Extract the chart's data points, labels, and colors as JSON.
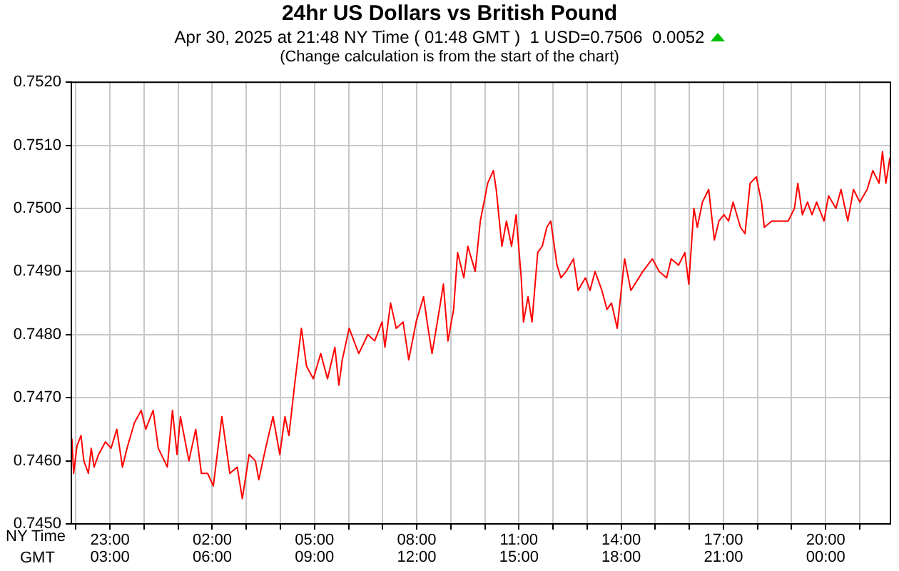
{
  "chart_data": {
    "type": "line",
    "title": "24hr US Dollars vs British Pound",
    "subtitle": "Apr 30, 2025 at 21:48 NY Time ( 01:48 GMT )  1 USD=0.7506  0.0052",
    "annotations": [
      "(Change calculation is from the start of the chart)"
    ],
    "xlabel": "NY Time",
    "x2label": "GMT",
    "x": [
      "2025-04-29T21:53",
      "2025-04-29T21:56",
      "2025-04-29T22:02",
      "2025-04-29T22:09",
      "2025-04-29T22:14",
      "2025-04-29T22:22",
      "2025-04-29T22:27",
      "2025-04-29T22:32",
      "2025-04-29T22:40",
      "2025-04-29T22:52",
      "2025-04-29T23:02",
      "2025-04-29T23:12",
      "2025-04-29T23:22",
      "2025-04-29T23:30",
      "2025-04-29T23:43",
      "2025-04-29T23:55",
      "2025-04-30T00:03",
      "2025-04-30T00:16",
      "2025-04-30T00:25",
      "2025-04-30T00:41",
      "2025-04-30T00:50",
      "2025-04-30T00:58",
      "2025-04-30T01:04",
      "2025-04-30T01:19",
      "2025-04-30T01:31",
      "2025-04-30T01:41",
      "2025-04-30T01:52",
      "2025-04-30T02:02",
      "2025-04-30T02:17",
      "2025-04-30T02:31",
      "2025-04-30T02:44",
      "2025-04-30T02:53",
      "2025-04-30T03:05",
      "2025-04-30T03:16",
      "2025-04-30T03:22",
      "2025-04-30T03:34",
      "2025-04-30T03:47",
      "2025-04-30T03:59",
      "2025-04-30T04:08",
      "2025-04-30T04:15",
      "2025-04-30T04:25",
      "2025-04-30T04:37",
      "2025-04-30T04:46",
      "2025-04-30T04:58",
      "2025-04-30T05:11",
      "2025-04-30T05:23",
      "2025-04-30T05:36",
      "2025-04-30T05:43",
      "2025-04-30T05:49",
      "2025-04-30T06:01",
      "2025-04-30T06:18",
      "2025-04-30T06:34",
      "2025-04-30T06:46",
      "2025-04-30T06:59",
      "2025-04-30T07:04",
      "2025-04-30T07:14",
      "2025-04-30T07:24",
      "2025-04-30T07:36",
      "2025-04-30T07:46",
      "2025-04-30T07:59",
      "2025-04-30T08:12",
      "2025-04-30T08:20",
      "2025-04-30T08:27",
      "2025-04-30T08:40",
      "2025-04-30T08:47",
      "2025-04-30T08:55",
      "2025-04-30T09:05",
      "2025-04-30T09:12",
      "2025-04-30T09:23",
      "2025-04-30T09:30",
      "2025-04-30T09:43",
      "2025-04-30T09:52",
      "2025-04-30T10:05",
      "2025-04-30T10:15",
      "2025-04-30T10:20",
      "2025-04-30T10:30",
      "2025-04-30T10:38",
      "2025-04-30T10:47",
      "2025-04-30T10:55",
      "2025-04-30T11:04",
      "2025-04-30T11:08",
      "2025-04-30T11:16",
      "2025-04-30T11:23",
      "2025-04-30T11:33",
      "2025-04-30T11:41",
      "2025-04-30T11:49",
      "2025-04-30T11:56",
      "2025-04-30T12:07",
      "2025-04-30T12:14",
      "2025-04-30T12:23",
      "2025-04-30T12:36",
      "2025-04-30T12:44",
      "2025-04-30T12:57",
      "2025-04-30T13:05",
      "2025-04-30T13:14",
      "2025-04-30T13:26",
      "2025-04-30T13:35",
      "2025-04-30T13:43",
      "2025-04-30T13:53",
      "2025-04-30T14:06",
      "2025-04-30T14:17",
      "2025-04-30T14:38",
      "2025-04-30T14:55",
      "2025-04-30T15:07",
      "2025-04-30T15:20",
      "2025-04-30T15:28",
      "2025-04-30T15:41",
      "2025-04-30T15:52",
      "2025-04-30T15:59",
      "2025-04-30T16:08",
      "2025-04-30T16:14",
      "2025-04-30T16:23",
      "2025-04-30T16:34",
      "2025-04-30T16:44",
      "2025-04-30T16:52",
      "2025-04-30T17:01",
      "2025-04-30T17:09",
      "2025-04-30T17:17",
      "2025-04-30T17:30",
      "2025-04-30T17:38",
      "2025-04-30T17:47",
      "2025-04-30T17:58",
      "2025-04-30T18:07",
      "2025-04-30T18:12",
      "2025-04-30T18:25",
      "2025-04-30T18:41",
      "2025-04-30T18:54",
      "2025-04-30T19:05",
      "2025-04-30T19:11",
      "2025-04-30T19:19",
      "2025-04-30T19:28",
      "2025-04-30T19:36",
      "2025-04-30T19:44",
      "2025-04-30T19:57",
      "2025-04-30T20:05",
      "2025-04-30T20:18",
      "2025-04-30T20:27",
      "2025-04-30T20:39",
      "2025-04-30T20:49",
      "2025-04-30T21:00",
      "2025-04-30T21:13",
      "2025-04-30T21:23",
      "2025-04-30T21:34",
      "2025-04-30T21:40",
      "2025-04-30T21:46",
      "2025-04-30T21:53"
    ],
    "series": [
      {
        "color": "#ff0000",
        "values": [
          0.74635,
          0.7458,
          0.74624,
          0.7464,
          0.746,
          0.7458,
          0.7462,
          0.7459,
          0.7461,
          0.7463,
          0.7462,
          0.7465,
          0.7459,
          0.7462,
          0.7466,
          0.7468,
          0.7465,
          0.7468,
          0.7462,
          0.7459,
          0.7468,
          0.7461,
          0.7467,
          0.746,
          0.7465,
          0.7458,
          0.7458,
          0.7456,
          0.7467,
          0.7458,
          0.7459,
          0.7454,
          0.7461,
          0.746,
          0.7457,
          0.7462,
          0.7467,
          0.7461,
          0.7467,
          0.7464,
          0.7472,
          0.7481,
          0.7475,
          0.7473,
          0.7477,
          0.7473,
          0.7478,
          0.7472,
          0.7476,
          0.7481,
          0.7477,
          0.748,
          0.7479,
          0.7482,
          0.7478,
          0.7485,
          0.7481,
          0.7482,
          0.7476,
          0.7482,
          0.7486,
          0.7481,
          0.7477,
          0.7484,
          0.7488,
          0.7479,
          0.7484,
          0.7493,
          0.7489,
          0.7494,
          0.749,
          0.7498,
          0.7504,
          0.7506,
          0.7503,
          0.7494,
          0.7498,
          0.7494,
          0.7499,
          0.7489,
          0.7482,
          0.7486,
          0.7482,
          0.7493,
          0.7494,
          0.7497,
          0.7498,
          0.7491,
          0.7489,
          0.749,
          0.7492,
          0.7487,
          0.7489,
          0.7487,
          0.749,
          0.7487,
          0.7484,
          0.7485,
          0.7481,
          0.7492,
          0.7487,
          0.749,
          0.7492,
          0.749,
          0.7489,
          0.7492,
          0.7491,
          0.7493,
          0.7488,
          0.75,
          0.7497,
          0.7501,
          0.7503,
          0.7495,
          0.7498,
          0.7499,
          0.7498,
          0.7501,
          0.7497,
          0.7496,
          0.7504,
          0.7505,
          0.7501,
          0.7497,
          0.7498,
          0.7498,
          0.7498,
          0.75,
          0.7504,
          0.7499,
          0.7501,
          0.7499,
          0.7501,
          0.7498,
          0.7502,
          0.75,
          0.7503,
          0.7498,
          0.7503,
          0.7501,
          0.7503,
          0.7506,
          0.7504,
          0.7509,
          0.7504,
          0.7508
        ]
      }
    ],
    "xlim": [
      "2025-04-29T21:52",
      "2025-04-30T21:54"
    ],
    "xticks": [
      {
        "value": "2025-04-29T22:00",
        "label": null
      },
      {
        "value": "2025-04-29T23:00",
        "label": "23:00"
      },
      {
        "value": "2025-04-30T00:00",
        "label": null
      },
      {
        "value": "2025-04-30T01:00",
        "label": null
      },
      {
        "value": "2025-04-30T02:00",
        "label": "02:00"
      },
      {
        "value": "2025-04-30T03:00",
        "label": null
      },
      {
        "value": "2025-04-30T04:00",
        "label": null
      },
      {
        "value": "2025-04-30T05:00",
        "label": "05:00"
      },
      {
        "value": "2025-04-30T06:00",
        "label": null
      },
      {
        "value": "2025-04-30T07:00",
        "label": null
      },
      {
        "value": "2025-04-30T08:00",
        "label": "08:00"
      },
      {
        "value": "2025-04-30T09:00",
        "label": null
      },
      {
        "value": "2025-04-30T10:00",
        "label": null
      },
      {
        "value": "2025-04-30T11:00",
        "label": "11:00"
      },
      {
        "value": "2025-04-30T12:00",
        "label": null
      },
      {
        "value": "2025-04-30T13:00",
        "label": null
      },
      {
        "value": "2025-04-30T14:00",
        "label": "14:00"
      },
      {
        "value": "2025-04-30T15:00",
        "label": null
      },
      {
        "value": "2025-04-30T16:00",
        "label": null
      },
      {
        "value": "2025-04-30T17:00",
        "label": "17:00"
      },
      {
        "value": "2025-04-30T18:00",
        "label": null
      },
      {
        "value": "2025-04-30T19:00",
        "label": null
      },
      {
        "value": "2025-04-30T20:00",
        "label": "20:00"
      },
      {
        "value": "2025-04-30T21:00",
        "label": null
      }
    ],
    "x2lim": [
      "2025-04-30T01:52",
      "2025-05-01T01:54"
    ],
    "x2ticks": [
      {
        "value": "2025-04-30T03:00",
        "label": "03:00"
      },
      {
        "value": "2025-04-30T06:00",
        "label": "06:00"
      },
      {
        "value": "2025-04-30T09:00",
        "label": "09:00"
      },
      {
        "value": "2025-04-30T12:00",
        "label": "12:00"
      },
      {
        "value": "2025-04-30T15:00",
        "label": "15:00"
      },
      {
        "value": "2025-04-30T18:00",
        "label": "18:00"
      },
      {
        "value": "2025-04-30T21:00",
        "label": "21:00"
      },
      {
        "value": "2025-05-01T00:00",
        "label": "00:00"
      }
    ],
    "ylim": [
      0.745,
      0.752
    ],
    "yticks": [
      {
        "value": 0.745,
        "label": "0.7450"
      },
      {
        "value": 0.746,
        "label": "0.7460"
      },
      {
        "value": 0.747,
        "label": "0.7470"
      },
      {
        "value": 0.748,
        "label": "0.7480"
      },
      {
        "value": 0.749,
        "label": "0.7490"
      },
      {
        "value": 0.75,
        "label": "0.7500"
      },
      {
        "value": 0.751,
        "label": "0.7510"
      },
      {
        "value": 0.752,
        "label": "0.7520"
      }
    ],
    "grid": true,
    "legend": false,
    "marker": "none",
    "line_style": "solid"
  }
}
